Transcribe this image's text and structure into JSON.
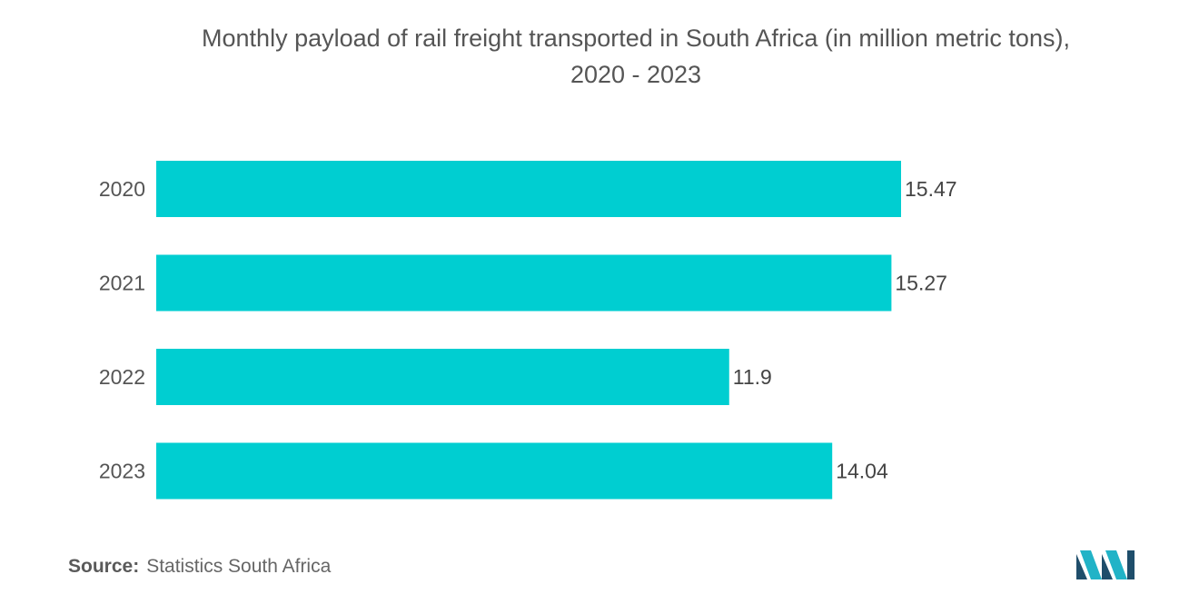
{
  "chart_data": {
    "type": "bar",
    "orientation": "horizontal",
    "title": "Monthly payload of rail freight transported in South Africa (in million metric tons),",
    "subtitle": "2020 - 2023",
    "categories": [
      "2020",
      "2021",
      "2022",
      "2023"
    ],
    "values": [
      15.47,
      15.27,
      11.9,
      14.04
    ],
    "value_labels": [
      "15.47",
      "15.27",
      "11.9",
      "14.04"
    ],
    "xlabel": "",
    "ylabel": "",
    "xlim": [
      0,
      15.47
    ],
    "grid": false,
    "legend": "none",
    "bar_color": "#00CED1"
  },
  "source": {
    "label": "Source:",
    "text": "Statistics South Africa"
  },
  "colors": {
    "bar": "#00CED1",
    "logo_dark": "#1f4e6b",
    "logo_light": "#21b3c7"
  }
}
